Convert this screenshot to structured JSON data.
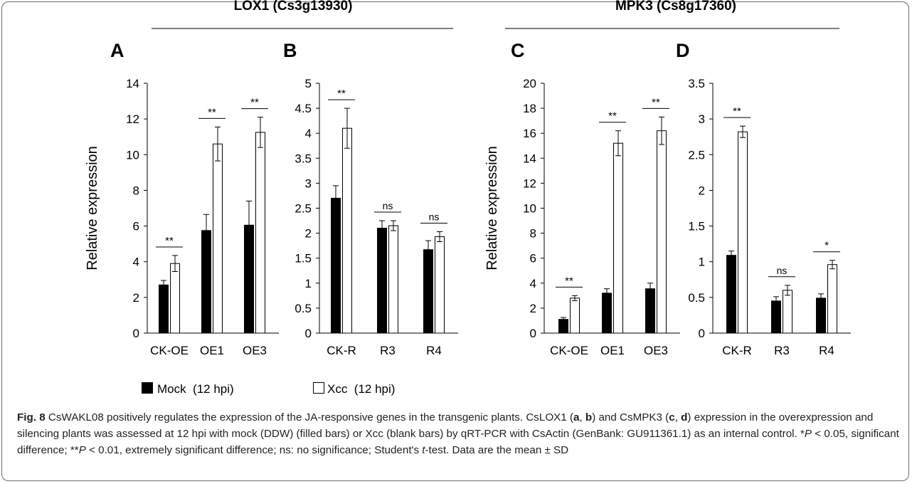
{
  "groups": [
    {
      "title": "LOX1 (Cs3g13930)"
    },
    {
      "title": "MPK3 (Cs8g17360)"
    }
  ],
  "legend": [
    {
      "label": "Mock  (12 hpi)",
      "color": "#000000"
    },
    {
      "label": "Xcc  (12 hpi)",
      "color": "#ffffff"
    }
  ],
  "caption": {
    "label": "Fig. 8",
    "segments": [
      {
        "t": " CsWAKL08 positively regulates the expression of the JA-responsive genes in the transgenic plants. CsLOX1 ("
      },
      {
        "t": "a",
        "b": true
      },
      {
        "t": ", "
      },
      {
        "t": "b",
        "b": true
      },
      {
        "t": ") and CsMPK3 ("
      },
      {
        "t": "c",
        "b": true
      },
      {
        "t": ", "
      },
      {
        "t": "d",
        "b": true
      },
      {
        "t": ") expression in the overexpression and silencing plants was assessed at 12 hpi with mock (DDW) (filled bars) or Xcc (blank bars) by qRT-PCR with CsActin (GenBank: GU911361.1) as an internal control. *"
      },
      {
        "t": "P",
        "i": true
      },
      {
        "t": " < 0.05, significant difference; **"
      },
      {
        "t": "P",
        "i": true
      },
      {
        "t": " < 0.01, extremely significant difference; ns: no significance; Student's "
      },
      {
        "t": "t",
        "i": true
      },
      {
        "t": "-test. Data are the mean ± SD"
      }
    ]
  },
  "chart_data": [
    {
      "panel": "A",
      "type": "bar",
      "ylabel": "Relative expression",
      "ylim": [
        0,
        14
      ],
      "yticks": [
        0,
        2,
        4,
        6,
        8,
        10,
        12,
        14
      ],
      "categories": [
        "CK-OE",
        "OE1",
        "OE3"
      ],
      "series": [
        {
          "name": "Mock  (12 hpi)",
          "values": [
            2.7,
            5.75,
            6.05
          ],
          "err": [
            0.25,
            0.9,
            1.35
          ]
        },
        {
          "name": "Xcc  (12 hpi)",
          "values": [
            3.9,
            10.6,
            11.25
          ],
          "err": [
            0.45,
            0.95,
            0.85
          ]
        }
      ],
      "significance": [
        "**",
        "**",
        "**"
      ]
    },
    {
      "panel": "B",
      "type": "bar",
      "ylabel": "",
      "ylim": [
        0,
        5
      ],
      "yticks": [
        0,
        0.5,
        1,
        1.5,
        2,
        2.5,
        3,
        3.5,
        4,
        4.5,
        5
      ],
      "categories": [
        "CK-R",
        "R3",
        "R4"
      ],
      "series": [
        {
          "name": "Mock  (12 hpi)",
          "values": [
            2.7,
            2.1,
            1.67
          ],
          "err": [
            0.25,
            0.15,
            0.18
          ]
        },
        {
          "name": "Xcc  (12 hpi)",
          "values": [
            4.1,
            2.15,
            1.93
          ],
          "err": [
            0.4,
            0.1,
            0.1
          ]
        }
      ],
      "significance": [
        "**",
        "ns",
        "ns"
      ]
    },
    {
      "panel": "C",
      "type": "bar",
      "ylabel": "Relative expression",
      "ylim": [
        0,
        20
      ],
      "yticks": [
        0,
        2,
        4,
        6,
        8,
        10,
        12,
        14,
        16,
        18,
        20
      ],
      "categories": [
        "CK-OE",
        "OE1",
        "OE3"
      ],
      "series": [
        {
          "name": "Mock  (12 hpi)",
          "values": [
            1.1,
            3.2,
            3.55
          ],
          "err": [
            0.15,
            0.35,
            0.45
          ]
        },
        {
          "name": "Xcc  (12 hpi)",
          "values": [
            2.8,
            15.2,
            16.2
          ],
          "err": [
            0.2,
            1.0,
            1.1
          ]
        }
      ],
      "significance": [
        "**",
        "**",
        "**"
      ]
    },
    {
      "panel": "D",
      "type": "bar",
      "ylabel": "",
      "ylim": [
        0,
        3.5
      ],
      "yticks": [
        0,
        0.5,
        1,
        1.5,
        2,
        2.5,
        3,
        3.5
      ],
      "categories": [
        "CK-R",
        "R3",
        "R4"
      ],
      "series": [
        {
          "name": "Mock  (12 hpi)",
          "values": [
            1.09,
            0.45,
            0.49
          ],
          "err": [
            0.06,
            0.06,
            0.06
          ]
        },
        {
          "name": "Xcc  (12 hpi)",
          "values": [
            2.82,
            0.6,
            0.96
          ],
          "err": [
            0.08,
            0.07,
            0.06
          ]
        }
      ],
      "significance": [
        "**",
        "ns",
        "*"
      ]
    }
  ]
}
